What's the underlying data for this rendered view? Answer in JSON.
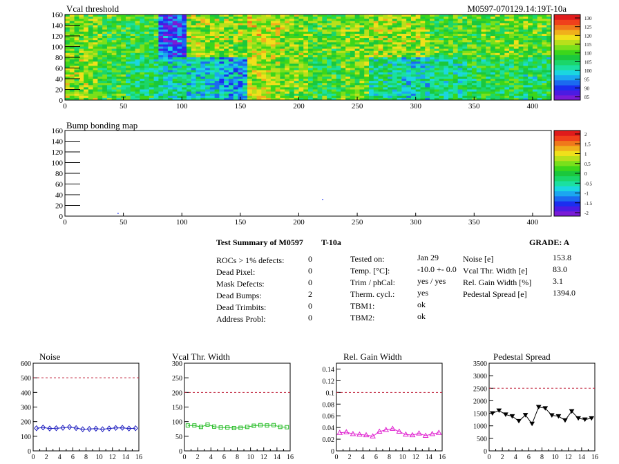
{
  "maps": {
    "vcal": {
      "title": "Vcal threshold",
      "module_tag": "M0597-070129.14:19T-10a",
      "xticks": [
        "0",
        "50",
        "100",
        "150",
        "200",
        "250",
        "300",
        "350",
        "400"
      ],
      "yticks": [
        "0",
        "20",
        "40",
        "60",
        "80",
        "100",
        "120",
        "140",
        "160"
      ],
      "xlim": [
        0,
        416
      ],
      "ylim": [
        0,
        160
      ],
      "palette_labels": [
        "130",
        "125",
        "120",
        "115",
        "110",
        "105",
        "100",
        "95",
        "90",
        "85"
      ]
    },
    "bump": {
      "title": "Bump bonding map",
      "xticks": [
        "0",
        "50",
        "100",
        "150",
        "200",
        "250",
        "300",
        "350",
        "400"
      ],
      "yticks": [
        "0",
        "20",
        "40",
        "60",
        "80",
        "100",
        "120",
        "140",
        "160"
      ],
      "xlim": [
        0,
        416
      ],
      "ylim": [
        0,
        160
      ],
      "palette_labels": [
        "2",
        "1.5",
        "1",
        "0.5",
        "0",
        "-0.5",
        "-1",
        "-1.5",
        "-2"
      ]
    }
  },
  "summary": {
    "title": "Test Summary of M0597",
    "tag": "T-10a",
    "grade": "GRADE:  A",
    "col1": [
      {
        "label": "ROCs > 1% defects:",
        "value": "0"
      },
      {
        "label": "Dead Pixel:",
        "value": "0"
      },
      {
        "label": "Mask Defects:",
        "value": "0"
      },
      {
        "label": "Dead Bumps:",
        "value": "2"
      },
      {
        "label": "Dead Trimbits:",
        "value": "0"
      },
      {
        "label": "Address Probl:",
        "value": "0"
      }
    ],
    "col2": [
      {
        "label": "Tested on:",
        "value": "Jan 29"
      },
      {
        "label": "Temp. [°C]:",
        "value": "-10.0 +- 0.0"
      },
      {
        "label": "Trim / phCal:",
        "value": "yes / yes"
      },
      {
        "label": "Therm. cycl.:",
        "value": "yes"
      },
      {
        "label": "TBM1:",
        "value": "ok"
      },
      {
        "label": "TBM2:",
        "value": "ok"
      }
    ],
    "col3": [
      {
        "label": "Noise [e]",
        "value": "153.8"
      },
      {
        "label": "Vcal Thr. Width [e]",
        "value": "83.0"
      },
      {
        "label": "Rel. Gain Width [%]",
        "value": "3.1"
      },
      {
        "label": "Pedestal Spread [e]",
        "value": "1394.0"
      }
    ]
  },
  "chart_data": [
    {
      "type": "heatmap",
      "title": "Vcal threshold",
      "xlim": [
        0,
        416
      ],
      "ylim": [
        0,
        160
      ],
      "zlim": [
        85,
        130
      ],
      "roc_mean_values_top": [
        112,
        110,
        108,
        92,
        114,
        113,
        116,
        113,
        110,
        112,
        114,
        113,
        110,
        110,
        112,
        111
      ],
      "roc_mean_values_bottom": [
        113,
        108,
        105,
        102,
        100,
        97,
        115,
        112,
        108,
        111,
        104,
        101,
        104,
        106,
        107,
        105
      ],
      "colors": "green-blue palette, ROC blocks of 52x80"
    },
    {
      "type": "heatmap",
      "title": "Bump bonding map",
      "xlim": [
        0,
        416
      ],
      "ylim": [
        0,
        160
      ],
      "zlim": [
        -2,
        2
      ],
      "dead_bumps": [
        [
          45,
          6
        ],
        [
          220,
          32
        ]
      ]
    },
    {
      "type": "line",
      "title": "Noise",
      "x": [
        0,
        1,
        2,
        3,
        4,
        5,
        6,
        7,
        8,
        9,
        10,
        11,
        12,
        13,
        14,
        15
      ],
      "values": [
        155,
        160,
        153,
        155,
        158,
        163,
        156,
        148,
        150,
        152,
        148,
        153,
        157,
        158,
        153,
        155
      ],
      "threshold": 500,
      "xlim": [
        0,
        16
      ],
      "ylim": [
        0,
        600
      ],
      "yticks": [
        "0",
        "100",
        "200",
        "300",
        "400",
        "500",
        "600"
      ],
      "xticks": [
        "0",
        "2",
        "4",
        "6",
        "8",
        "10",
        "12",
        "14",
        "16"
      ],
      "color": "#2020c0",
      "marker": "diamond"
    },
    {
      "type": "line",
      "title": "Vcal Thr. Width",
      "x": [
        0,
        1,
        2,
        3,
        4,
        5,
        6,
        7,
        8,
        9,
        10,
        11,
        12,
        13,
        14,
        15
      ],
      "values": [
        87,
        87,
        82,
        90,
        83,
        80,
        80,
        78,
        79,
        82,
        86,
        88,
        87,
        88,
        82,
        81
      ],
      "threshold": 200,
      "xlim": [
        0,
        16
      ],
      "ylim": [
        0,
        300
      ],
      "yticks": [
        "0",
        "50",
        "100",
        "150",
        "200",
        "250",
        "300"
      ],
      "xticks": [
        "0",
        "2",
        "4",
        "6",
        "8",
        "10",
        "12",
        "14",
        "16"
      ],
      "color": "#22bb22",
      "marker": "square"
    },
    {
      "type": "line",
      "title": "Rel. Gain Width",
      "x": [
        0,
        1,
        2,
        3,
        4,
        5,
        6,
        7,
        8,
        9,
        10,
        11,
        12,
        13,
        14,
        15
      ],
      "values": [
        0.031,
        0.032,
        0.029,
        0.028,
        0.027,
        0.025,
        0.033,
        0.036,
        0.038,
        0.033,
        0.028,
        0.027,
        0.03,
        0.026,
        0.029,
        0.031
      ],
      "threshold": 0.1,
      "xlim": [
        0,
        16
      ],
      "ylim": [
        0,
        0.15
      ],
      "yticks": [
        "0",
        "0.02",
        "0.04",
        "0.06",
        "0.08",
        "0.1",
        "0.12",
        "0.14"
      ],
      "xticks": [
        "0",
        "2",
        "4",
        "6",
        "8",
        "10",
        "12",
        "14",
        "16"
      ],
      "color": "#e020d0",
      "marker": "triangle"
    },
    {
      "type": "line",
      "title": "Pedestal Spread",
      "x": [
        0,
        1,
        2,
        3,
        4,
        5,
        6,
        7,
        8,
        9,
        10,
        11,
        12,
        13,
        14,
        15
      ],
      "values": [
        1500,
        1610,
        1450,
        1380,
        1190,
        1430,
        1080,
        1750,
        1700,
        1420,
        1380,
        1220,
        1580,
        1300,
        1250,
        1300
      ],
      "threshold": 2500,
      "xlim": [
        0,
        16
      ],
      "ylim": [
        0,
        3500
      ],
      "yticks": [
        "0",
        "500",
        "1000",
        "1500",
        "2000",
        "2500",
        "3000",
        "3500"
      ],
      "xticks": [
        "0",
        "2",
        "4",
        "6",
        "8",
        "10",
        "12",
        "14",
        "16"
      ],
      "color": "#000000",
      "marker": "triangle-down"
    }
  ]
}
